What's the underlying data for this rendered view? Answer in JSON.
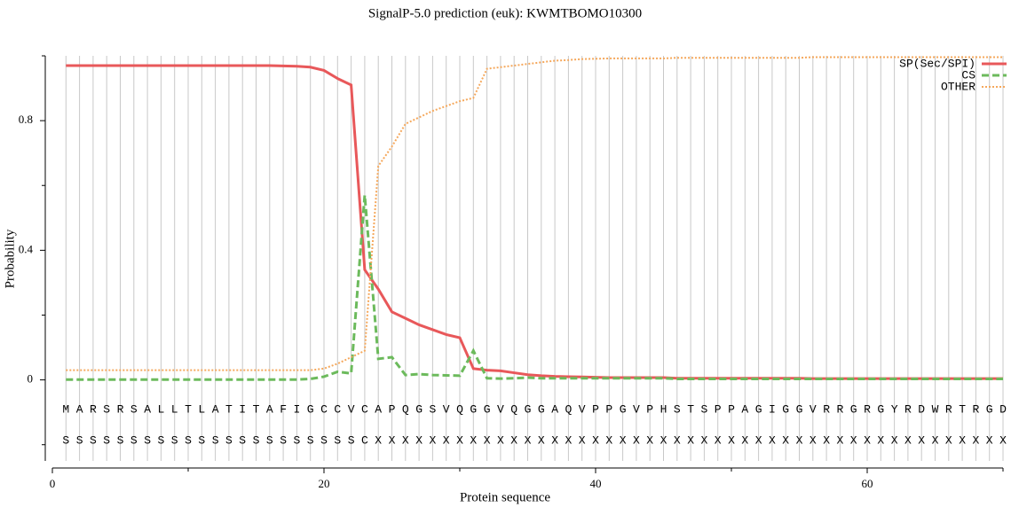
{
  "chart_data": {
    "type": "line",
    "title": "SignalP-5.0 prediction (euk):  KWMTBOMO10300",
    "xlabel": "Protein sequence",
    "ylabel": "Probability",
    "x": [
      1,
      2,
      3,
      4,
      5,
      6,
      7,
      8,
      9,
      10,
      11,
      12,
      13,
      14,
      15,
      16,
      17,
      18,
      19,
      20,
      21,
      22,
      23,
      24,
      25,
      26,
      27,
      28,
      29,
      30,
      31,
      32,
      33,
      34,
      35,
      36,
      37,
      38,
      39,
      40,
      41,
      42,
      43,
      44,
      45,
      46,
      47,
      48,
      49,
      50,
      51,
      52,
      53,
      54,
      55,
      56,
      57,
      58,
      59,
      60,
      61,
      62,
      63,
      64,
      65,
      66,
      67,
      68,
      69,
      70
    ],
    "sequence": [
      "M",
      "A",
      "R",
      "S",
      "R",
      "S",
      "A",
      "L",
      "L",
      "T",
      "L",
      "A",
      "T",
      "I",
      "T",
      "A",
      "F",
      "I",
      "G",
      "C",
      "C",
      "V",
      "C",
      "A",
      "P",
      "Q",
      "G",
      "S",
      "V",
      "Q",
      "G",
      "G",
      "V",
      "Q",
      "G",
      "G",
      "A",
      "Q",
      "V",
      "P",
      "P",
      "G",
      "V",
      "P",
      "H",
      "S",
      "T",
      "S",
      "P",
      "P",
      "A",
      "G",
      "I",
      "G",
      "G",
      "V",
      "R",
      "R",
      "G",
      "R",
      "G",
      "Y",
      "R",
      "D",
      "W",
      "R",
      "T",
      "R",
      "G",
      "D"
    ],
    "labels": [
      "S",
      "S",
      "S",
      "S",
      "S",
      "S",
      "S",
      "S",
      "S",
      "S",
      "S",
      "S",
      "S",
      "S",
      "S",
      "S",
      "S",
      "S",
      "S",
      "S",
      "S",
      "S",
      "C",
      "X",
      "X",
      "X",
      "X",
      "X",
      "X",
      "X",
      "X",
      "X",
      "X",
      "X",
      "X",
      "X",
      "X",
      "X",
      "X",
      "X",
      "X",
      "X",
      "X",
      "X",
      "X",
      "X",
      "X",
      "X",
      "X",
      "X",
      "X",
      "X",
      "X",
      "X",
      "X",
      "X",
      "X",
      "X",
      "X",
      "X",
      "X",
      "X",
      "X",
      "X",
      "X",
      "X",
      "X",
      "X",
      "X",
      "X"
    ],
    "series": [
      {
        "name": "SP(Sec/SPI)",
        "color": "#e8585a",
        "dash": "solid",
        "values": [
          0.97,
          0.97,
          0.97,
          0.97,
          0.97,
          0.97,
          0.97,
          0.97,
          0.97,
          0.97,
          0.97,
          0.97,
          0.97,
          0.97,
          0.97,
          0.97,
          0.969,
          0.968,
          0.965,
          0.955,
          0.93,
          0.91,
          0.34,
          0.28,
          0.21,
          0.19,
          0.17,
          0.155,
          0.14,
          0.13,
          0.035,
          0.03,
          0.028,
          0.022,
          0.016,
          0.013,
          0.011,
          0.01,
          0.009,
          0.008,
          0.007,
          0.007,
          0.007,
          0.007,
          0.007,
          0.005,
          0.005,
          0.005,
          0.005,
          0.005,
          0.005,
          0.005,
          0.005,
          0.005,
          0.005,
          0.004,
          0.004,
          0.004,
          0.004,
          0.004,
          0.004,
          0.004,
          0.004,
          0.004,
          0.004,
          0.004,
          0.004,
          0.004,
          0.004,
          0.004
        ]
      },
      {
        "name": "CS",
        "color": "#6cba5c",
        "dash": "dashed",
        "values": [
          0.001,
          0.001,
          0.001,
          0.001,
          0.001,
          0.001,
          0.001,
          0.001,
          0.001,
          0.001,
          0.001,
          0.001,
          0.001,
          0.001,
          0.001,
          0.001,
          0.001,
          0.001,
          0.003,
          0.01,
          0.025,
          0.02,
          0.57,
          0.065,
          0.07,
          0.015,
          0.018,
          0.015,
          0.014,
          0.013,
          0.09,
          0.005,
          0.004,
          0.005,
          0.007,
          0.005,
          0.005,
          0.005,
          0.005,
          0.005,
          0.005,
          0.005,
          0.005,
          0.005,
          0.005,
          0.003,
          0.003,
          0.003,
          0.003,
          0.003,
          0.003,
          0.003,
          0.003,
          0.003,
          0.003,
          0.003,
          0.003,
          0.003,
          0.003,
          0.003,
          0.003,
          0.003,
          0.003,
          0.003,
          0.003,
          0.003,
          0.003,
          0.003,
          0.003,
          0.003
        ]
      },
      {
        "name": "OTHER",
        "color": "#f5a85c",
        "dash": "dotted",
        "values": [
          0.03,
          0.03,
          0.03,
          0.03,
          0.03,
          0.03,
          0.03,
          0.03,
          0.03,
          0.03,
          0.03,
          0.03,
          0.03,
          0.03,
          0.03,
          0.03,
          0.03,
          0.03,
          0.03,
          0.035,
          0.05,
          0.07,
          0.09,
          0.66,
          0.72,
          0.79,
          0.81,
          0.83,
          0.845,
          0.86,
          0.87,
          0.96,
          0.965,
          0.97,
          0.975,
          0.98,
          0.985,
          0.987,
          0.99,
          0.991,
          0.992,
          0.992,
          0.992,
          0.992,
          0.992,
          0.994,
          0.994,
          0.994,
          0.994,
          0.994,
          0.994,
          0.994,
          0.994,
          0.994,
          0.994,
          0.996,
          0.996,
          0.996,
          0.996,
          0.996,
          0.996,
          0.996,
          0.996,
          0.996,
          0.996,
          0.996,
          0.996,
          0.996,
          0.996,
          0.996
        ]
      }
    ],
    "xlim": [
      0,
      70
    ],
    "xticks": [
      0,
      20,
      40,
      60
    ],
    "xminor_ticks": [
      10,
      30,
      50,
      70
    ],
    "ylim": [
      -0.25,
      1.0
    ],
    "yticks": [
      0,
      0.4,
      0.8
    ],
    "yminor_ticks": [
      -0.2,
      0.2,
      0.6,
      1.0
    ],
    "grid": true,
    "legend": "upper right"
  }
}
